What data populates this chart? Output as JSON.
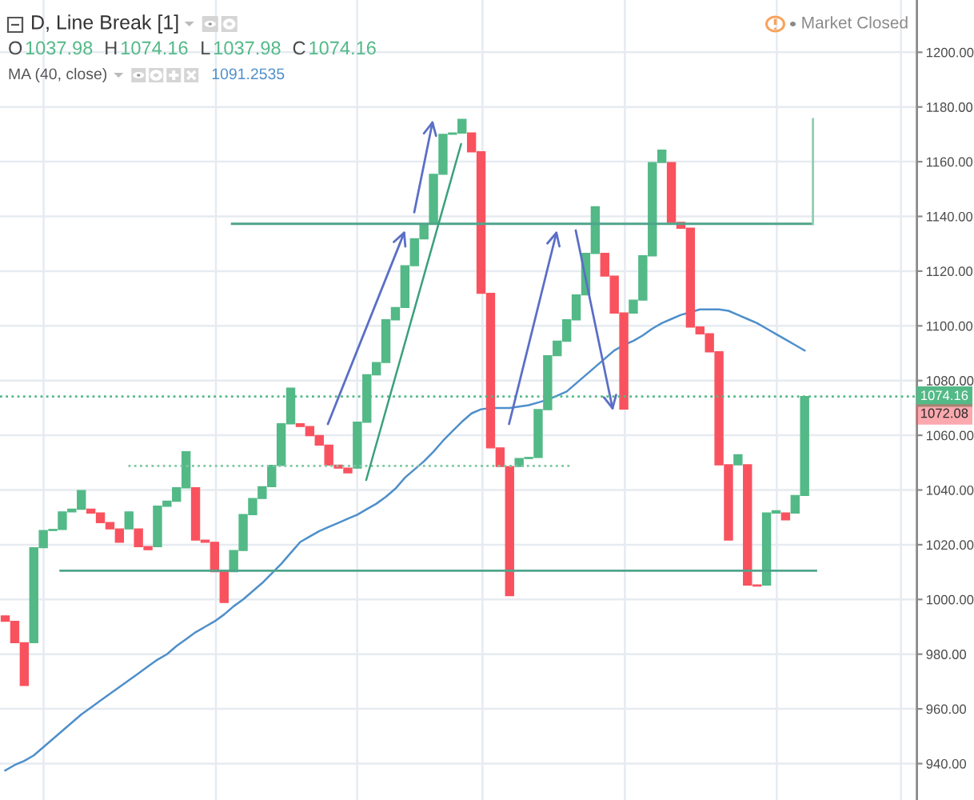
{
  "chart_data": {
    "type": "candlestick",
    "title": "D, Line Break [1]",
    "categories": [
      null,
      null,
      null,
      null,
      null,
      null,
      null,
      null,
      null,
      null,
      null,
      null,
      null,
      null,
      null,
      null,
      null,
      null,
      null,
      null,
      null,
      null,
      null,
      null,
      null,
      null,
      null,
      null,
      null,
      null,
      null,
      null,
      null,
      null,
      null,
      null,
      null,
      null,
      null,
      null,
      null,
      null,
      null,
      null,
      null,
      null,
      null,
      null,
      null,
      null,
      null,
      null,
      null,
      null,
      null,
      null,
      null,
      null,
      null,
      null,
      null,
      null,
      null,
      null,
      null,
      null,
      null,
      null,
      null,
      null,
      null,
      null,
      null,
      null,
      null,
      null,
      null,
      null,
      null,
      null,
      null,
      null,
      null,
      null,
      null
    ],
    "ohlc": [
      [
        994.0,
        994.0,
        992.0,
        992.0
      ],
      [
        992.0,
        992.0,
        984.2,
        984.2
      ],
      [
        984.2,
        984.2,
        968.6,
        968.6
      ],
      [
        984.2,
        1018.9,
        984.2,
        1018.9
      ],
      [
        1018.9,
        1025.2,
        1018.9,
        1025.2
      ],
      [
        1025.2,
        1025.6,
        1025.2,
        1025.6
      ],
      [
        1025.6,
        1032.0,
        1025.6,
        1032.0
      ],
      [
        1032.0,
        1033.0,
        1032.0,
        1033.0
      ],
      [
        1033.0,
        1039.8,
        1033.0,
        1039.8
      ],
      [
        1033.0,
        1033.0,
        1031.6,
        1031.6
      ],
      [
        1031.6,
        1031.6,
        1028.1,
        1028.1
      ],
      [
        1028.1,
        1028.1,
        1025.8,
        1025.8
      ],
      [
        1025.8,
        1025.8,
        1020.9,
        1020.9
      ],
      [
        1025.8,
        1032.0,
        1025.8,
        1032.0
      ],
      [
        1025.8,
        1025.8,
        1019.3,
        1019.3
      ],
      [
        1019.3,
        1019.3,
        1018.2,
        1018.2
      ],
      [
        1019.3,
        1034.1,
        1019.3,
        1034.1
      ],
      [
        1034.1,
        1035.9,
        1034.1,
        1035.9
      ],
      [
        1035.9,
        1040.8,
        1035.9,
        1040.8
      ],
      [
        1040.8,
        1054.0,
        1040.8,
        1054.0
      ],
      [
        1040.8,
        1040.8,
        1021.7,
        1021.7
      ],
      [
        1021.7,
        1021.7,
        1020.9,
        1020.9
      ],
      [
        1020.9,
        1020.9,
        1010.2,
        1010.2
      ],
      [
        1010.2,
        1010.2,
        998.9,
        998.9
      ],
      [
        1010.2,
        1017.9,
        1010.2,
        1017.9
      ],
      [
        1017.9,
        1031.0,
        1017.9,
        1031.0
      ],
      [
        1031.0,
        1036.9,
        1031.0,
        1036.9
      ],
      [
        1036.9,
        1041.2,
        1036.9,
        1041.2
      ],
      [
        1041.2,
        1049.0,
        1041.2,
        1049.0
      ],
      [
        1049.0,
        1064.2,
        1049.0,
        1064.2
      ],
      [
        1064.2,
        1077.2,
        1064.2,
        1077.2
      ],
      [
        1064.2,
        1064.2,
        1063.2,
        1063.2
      ],
      [
        1063.2,
        1063.2,
        1059.9,
        1059.9
      ],
      [
        1059.9,
        1059.9,
        1056.4,
        1056.4
      ],
      [
        1056.4,
        1056.4,
        1049.1,
        1049.1
      ],
      [
        1049.1,
        1049.1,
        1048.0,
        1048.0
      ],
      [
        1048.0,
        1048.0,
        1046.3,
        1046.3
      ],
      [
        1048.0,
        1064.8,
        1048.0,
        1064.8
      ],
      [
        1064.8,
        1082.1,
        1064.8,
        1082.1
      ],
      [
        1082.1,
        1086.6,
        1082.1,
        1086.6
      ],
      [
        1086.6,
        1102.2,
        1086.6,
        1102.2
      ],
      [
        1102.2,
        1106.7,
        1102.2,
        1106.7
      ],
      [
        1106.7,
        1122.0,
        1106.7,
        1122.0
      ],
      [
        1122.0,
        1131.8,
        1122.0,
        1131.8
      ],
      [
        1131.8,
        1137.3,
        1131.8,
        1137.3
      ],
      [
        1137.3,
        1155.4,
        1137.3,
        1155.4
      ],
      [
        1155.4,
        1170.0,
        1155.4,
        1170.0
      ],
      [
        1170.0,
        1170.5,
        1170.0,
        1170.5
      ],
      [
        1170.5,
        1175.5,
        1170.5,
        1175.5
      ],
      [
        1170.5,
        1170.5,
        1163.6,
        1163.6
      ],
      [
        1163.6,
        1163.6,
        1111.9,
        1111.9
      ],
      [
        1111.9,
        1111.9,
        1055.4,
        1055.4
      ],
      [
        1055.4,
        1055.4,
        1048.6,
        1048.6
      ],
      [
        1048.6,
        1048.6,
        1001.4,
        1001.4
      ],
      [
        1048.6,
        1051.5,
        1048.6,
        1051.5
      ],
      [
        1051.5,
        1051.9,
        1051.5,
        1051.9
      ],
      [
        1051.9,
        1069.4,
        1051.9,
        1069.4
      ],
      [
        1069.4,
        1089.1,
        1069.4,
        1089.1
      ],
      [
        1089.1,
        1094.4,
        1089.1,
        1094.4
      ],
      [
        1094.4,
        1102.2,
        1094.4,
        1102.2
      ],
      [
        1102.2,
        1111.3,
        1102.2,
        1111.3
      ],
      [
        1111.3,
        1126.5,
        1111.3,
        1126.5
      ],
      [
        1126.5,
        1143.5,
        1126.5,
        1143.5
      ],
      [
        1126.5,
        1126.5,
        1118.2,
        1118.2
      ],
      [
        1118.2,
        1118.2,
        1104.7,
        1104.7
      ],
      [
        1104.7,
        1104.7,
        1069.6,
        1069.6
      ],
      [
        1104.7,
        1109.4,
        1104.7,
        1109.4
      ],
      [
        1109.4,
        1125.6,
        1109.4,
        1125.6
      ],
      [
        1125.6,
        1159.7,
        1125.6,
        1159.7
      ],
      [
        1159.7,
        1164.2,
        1159.7,
        1164.2
      ],
      [
        1159.7,
        1159.7,
        1137.8,
        1137.8
      ],
      [
        1137.8,
        1137.8,
        1135.7,
        1135.7
      ],
      [
        1135.7,
        1135.7,
        1099.6,
        1099.6
      ],
      [
        1099.6,
        1099.6,
        1097.1,
        1097.1
      ],
      [
        1097.1,
        1097.1,
        1090.5,
        1090.5
      ],
      [
        1090.5,
        1090.5,
        1049.2,
        1049.2
      ],
      [
        1049.2,
        1049.2,
        1021.7,
        1021.7
      ],
      [
        1049.2,
        1052.9,
        1049.2,
        1052.9
      ],
      [
        1049.2,
        1049.2,
        1005.3,
        1005.3
      ],
      [
        1005.3,
        1005.3,
        1004.9,
        1004.9
      ],
      [
        1005.3,
        1031.6,
        1005.3,
        1031.6
      ],
      [
        1031.6,
        1032.4,
        1031.6,
        1032.4
      ],
      [
        1031.6,
        1031.6,
        1029.1,
        1029.1
      ],
      [
        1031.6,
        1037.98,
        1031.6,
        1037.98
      ],
      [
        1037.98,
        1074.16,
        1037.98,
        1074.16
      ]
    ],
    "colors": [
      "#f9525f",
      "#f9525f",
      "#f9525f",
      "#53b987",
      "#53b987",
      "#53b987",
      "#53b987",
      "#53b987",
      "#53b987",
      "#f9525f",
      "#f9525f",
      "#f9525f",
      "#f9525f",
      "#53b987",
      "#f9525f",
      "#f9525f",
      "#53b987",
      "#53b987",
      "#53b987",
      "#53b987",
      "#f9525f",
      "#f9525f",
      "#f9525f",
      "#f9525f",
      "#53b987",
      "#53b987",
      "#53b987",
      "#53b987",
      "#53b987",
      "#53b987",
      "#53b987",
      "#f9525f",
      "#f9525f",
      "#f9525f",
      "#f9525f",
      "#f9525f",
      "#f9525f",
      "#53b987",
      "#53b987",
      "#53b987",
      "#53b987",
      "#53b987",
      "#53b987",
      "#53b987",
      "#53b987",
      "#53b987",
      "#53b987",
      "#53b987",
      "#53b987",
      "#f9525f",
      "#f9525f",
      "#f9525f",
      "#f9525f",
      "#f9525f",
      "#53b987",
      "#53b987",
      "#53b987",
      "#53b987",
      "#53b987",
      "#53b987",
      "#53b987",
      "#53b987",
      "#53b987",
      "#f9525f",
      "#f9525f",
      "#f9525f",
      "#53b987",
      "#53b987",
      "#53b987",
      "#53b987",
      "#f9525f",
      "#f9525f",
      "#f9525f",
      "#f9525f",
      "#f9525f",
      "#f9525f",
      "#f9525f",
      "#53b987",
      "#f9525f",
      "#f9525f",
      "#53b987",
      "#53b987",
      "#f9525f",
      "#53b987",
      "#53b987"
    ],
    "series": [
      {
        "type": "line",
        "color": "#4e8fca",
        "values": [
          937.5,
          939.5,
          941,
          943,
          946,
          949,
          952,
          955,
          958,
          960.5,
          963,
          965.5,
          968,
          970.5,
          973,
          975.5,
          978,
          980,
          983,
          985.5,
          988,
          990,
          992,
          994.5,
          997.5,
          1000,
          1003,
          1006,
          1009.5,
          1013,
          1017,
          1021,
          1023,
          1025,
          1026.5,
          1028,
          1029.5,
          1031,
          1033,
          1035,
          1037.5,
          1040.5,
          1044.5,
          1047.5,
          1050.5,
          1054,
          1058,
          1061.5,
          1065,
          1068,
          1069.5,
          1070,
          1070,
          1070,
          1070.5,
          1071,
          1072,
          1073,
          1074.5,
          1076,
          1079,
          1082,
          1085,
          1088,
          1091,
          1093,
          1094.5,
          1096.5,
          1099,
          1101,
          1102.5,
          1104,
          1105,
          1106,
          1106,
          1106,
          1105.5,
          1104,
          1102.5,
          1101,
          1099,
          1097,
          1095,
          1093,
          1091
        ]
      }
    ],
    "ylim": [
      926.7,
      1219.1
    ],
    "yticks": [
      {
        "value": 940,
        "label": "940.00"
      },
      {
        "value": 960,
        "label": "960.00"
      },
      {
        "value": 980,
        "label": "980.00"
      },
      {
        "value": 1000,
        "label": "1000.00"
      },
      {
        "value": 1020,
        "label": "1020.00"
      },
      {
        "value": 1040,
        "label": "1040.00"
      },
      {
        "value": 1060,
        "label": "1060.00"
      },
      {
        "value": 1080,
        "label": "1080.00"
      },
      {
        "value": 1100,
        "label": "1100.00"
      },
      {
        "value": 1120,
        "label": "1120.00"
      },
      {
        "value": 1140,
        "label": "1140.00"
      },
      {
        "value": 1160,
        "label": "1160.00"
      },
      {
        "value": 1180,
        "label": "1180.00"
      },
      {
        "value": 1200,
        "label": "1200.00"
      }
    ],
    "tick_labels": "y",
    "grid": true,
    "ref_lines": [
      {
        "axis": "y",
        "value": 1074.16,
        "label": "1074.16",
        "color": "#53b987",
        "line_style": "dotted"
      },
      {
        "axis": "y",
        "value": 1137.3,
        "color": "#4fa58b",
        "line_style": "solid"
      },
      {
        "axis": "y",
        "value": 1010.5,
        "color": "#4fa58b",
        "line_style": "solid"
      },
      {
        "axis": "y",
        "value": 1048.8,
        "color": "#7fc7a3",
        "line_style": "dotted"
      }
    ],
    "annotations": [
      "O",
      "1037.98",
      "H",
      "1074.16",
      "L",
      "1037.98",
      "C",
      "1074.16",
      "MA (40, close)",
      "1091.2535",
      "Market Closed",
      "1072.08"
    ]
  }
}
